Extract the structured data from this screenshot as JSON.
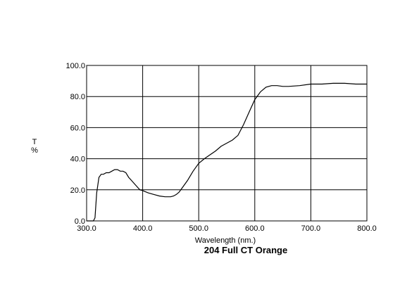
{
  "chart_data": {
    "type": "line",
    "title": "204 Full CT Orange",
    "xlabel": "Wavelength (nm.)",
    "ylabel_top": "T",
    "ylabel_bottom": "%",
    "xlim": [
      300,
      800
    ],
    "ylim": [
      0,
      100
    ],
    "grid": true,
    "x_ticks": [
      "300.0",
      "400.0",
      "500.0",
      "600.0",
      "700.0",
      "800.0"
    ],
    "y_ticks": [
      "0.0",
      "20.0",
      "40.0",
      "60.0",
      "80.0",
      "100.0"
    ],
    "line_color": "#000000",
    "series": [
      {
        "x": [
          300,
          312,
          315,
          318,
          322,
          326,
          330,
          335,
          340,
          345,
          350,
          355,
          360,
          365,
          370,
          375,
          380,
          385,
          390,
          395,
          400,
          410,
          420,
          430,
          440,
          450,
          455,
          460,
          465,
          470,
          480,
          490,
          500,
          510,
          520,
          530,
          540,
          550,
          560,
          570,
          580,
          590,
          600,
          610,
          620,
          630,
          640,
          650,
          660,
          680,
          700,
          720,
          740,
          760,
          780,
          800
        ],
        "y": [
          0,
          0,
          2,
          18,
          28,
          30,
          30,
          31,
          31,
          32,
          33,
          33,
          32,
          32,
          31,
          28,
          26,
          24,
          22,
          20,
          19.5,
          18,
          17,
          16,
          15.5,
          15.5,
          16,
          17,
          18.5,
          21,
          26,
          32,
          37,
          40,
          42.5,
          45,
          48,
          50,
          52,
          55,
          62,
          70,
          78,
          83,
          86,
          87,
          87,
          86.5,
          86.5,
          87,
          88,
          88,
          88.5,
          88.5,
          88,
          88
        ]
      }
    ]
  }
}
